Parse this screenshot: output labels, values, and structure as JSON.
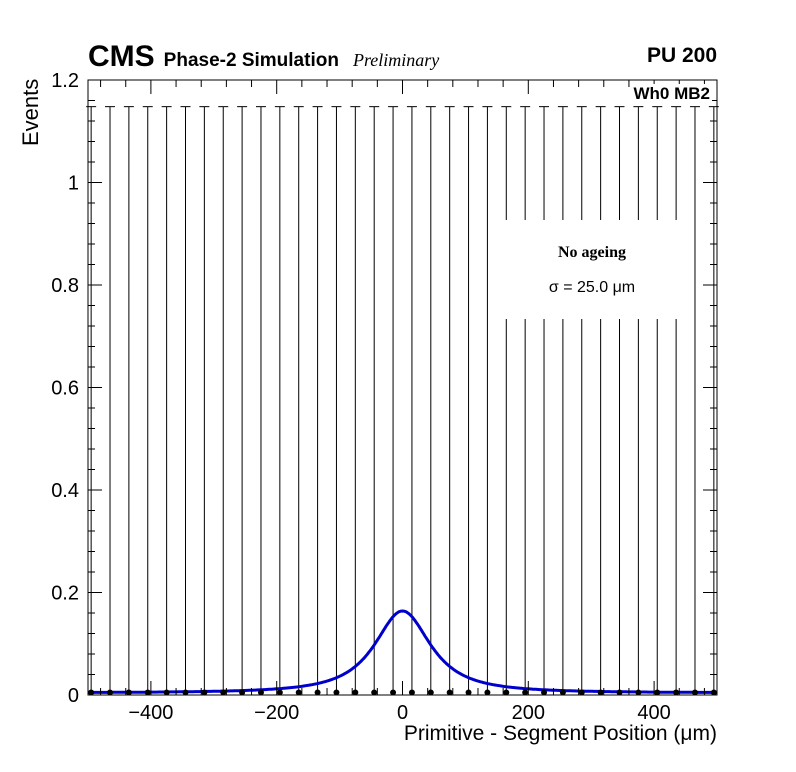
{
  "header": {
    "experiment": "CMS",
    "subtitle": "Phase-2 Simulation",
    "status": "Preliminary",
    "pileup": "PU 200"
  },
  "plot": {
    "region_label": "Wh0 MB2",
    "legend": {
      "line1": "No ageing",
      "line2": "σ = 25.0 μm"
    }
  },
  "chart_data": {
    "type": "scatter",
    "title": "",
    "xlabel": "Primitive - Segment Position (μm)",
    "ylabel": "Events",
    "xlim": [
      -500,
      500
    ],
    "ylim": [
      0,
      1.2
    ],
    "grid": false,
    "x_major_ticks": [
      -400,
      -200,
      0,
      200,
      400
    ],
    "x_tick_labels": [
      "−400",
      "−200",
      "0",
      "200",
      "400"
    ],
    "x_minor_step": 40,
    "y_major_ticks": [
      0,
      0.2,
      0.4,
      0.6,
      0.8,
      1.0,
      1.2
    ],
    "y_tick_labels": [
      "0",
      "0.2",
      "0.4",
      "0.6",
      "0.8",
      "1",
      "1.2"
    ],
    "y_minor_step": 0.04,
    "frame_color": "#000000",
    "points": {
      "color": "#000000",
      "marker_radius": 3,
      "error_top": 1.148,
      "x": [
        -495,
        -465,
        -435,
        -405,
        -375,
        -345,
        -315,
        -285,
        -255,
        -225,
        -195,
        -165,
        -135,
        -105,
        -75,
        -45,
        -15,
        15,
        45,
        75,
        105,
        135,
        165,
        195,
        225,
        255,
        285,
        315,
        345,
        375,
        405,
        435,
        465,
        495
      ],
      "y": [
        0.005,
        0.005,
        0.005,
        0.005,
        0.005,
        0.005,
        0.005,
        0.005,
        0.005,
        0.005,
        0.005,
        0.005,
        0.005,
        0.005,
        0.005,
        0.005,
        0.005,
        0.005,
        0.005,
        0.005,
        0.005,
        0.005,
        0.005,
        0.005,
        0.005,
        0.005,
        0.005,
        0.005,
        0.005,
        0.005,
        0.005,
        0.005,
        0.005,
        0.005
      ]
    },
    "fit_curve": {
      "color": "#0000cc",
      "line_width": 3,
      "model": "moffat",
      "amplitude": 0.16,
      "center": 0,
      "width": 60,
      "power": 1.2,
      "baseline": 0.004,
      "sigma_um": 25.0,
      "peak_value": 0.164
    }
  }
}
